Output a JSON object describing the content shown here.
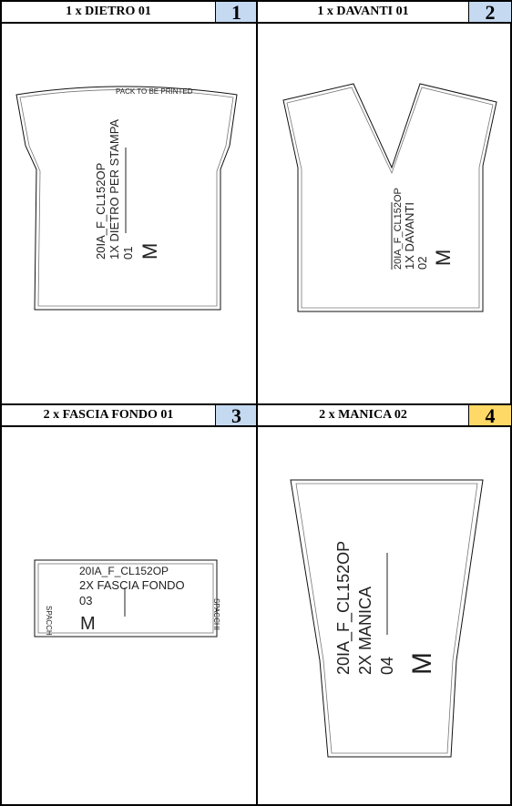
{
  "colors": {
    "badge_blue": "#c5d9f1",
    "badge_yellow": "#ffd966",
    "border": "#000000"
  },
  "panels": [
    {
      "title": "1 x DIETRO 01",
      "number": "1",
      "top_note": "PACK TO BE PRINTED",
      "label": {
        "code": "20IA_F_CL152OP",
        "desc": "1X DIETRO PER STAMPA",
        "num": "01",
        "size": "M"
      }
    },
    {
      "title": "1 x DAVANTI 01",
      "number": "2",
      "label": {
        "code": "20IA_F_CL152OP",
        "desc": "1X DAVANTI",
        "num": "02",
        "size": "M"
      }
    },
    {
      "title": "2 x FASCIA FONDO 01",
      "number": "3",
      "side_note": "SPACCHI",
      "label": {
        "code": "20IA_F_CL152OP",
        "desc": "2X FASCIA FONDO",
        "num": "03",
        "size": "M"
      }
    },
    {
      "title": "2 x MANICA 02",
      "number": "4",
      "label": {
        "code": "20IA_F_CL152OP",
        "desc": "2X MANICA",
        "num": "04",
        "size": "M"
      }
    }
  ]
}
